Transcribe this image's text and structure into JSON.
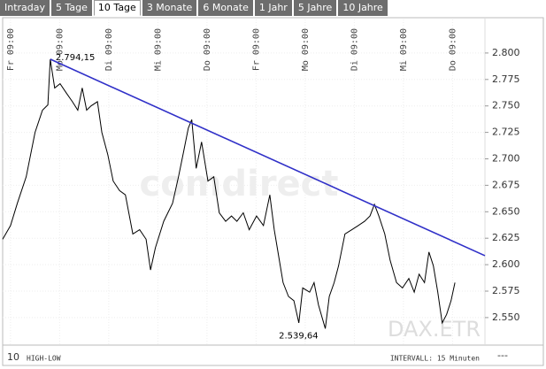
{
  "tabs": [
    "Intraday",
    "5 Tage",
    "10 Tage",
    "3 Monate",
    "6 Monate",
    "1 Jahr",
    "5 Jahre",
    "10 Jahre"
  ],
  "selected_tab_index": 2,
  "chart_data": {
    "type": "line",
    "x": [
      -0.16,
      0,
      0.14,
      0.32,
      0.5,
      0.65,
      0.76,
      0.81,
      0.9,
      1.01,
      1.14,
      1.26,
      1.37,
      1.46,
      1.55,
      1.64,
      1.77,
      1.86,
      1.98,
      2.09,
      2.22,
      2.34,
      2.49,
      2.63,
      2.76,
      2.85,
      2.95,
      3.12,
      3.3,
      3.42,
      3.53,
      3.62,
      3.69,
      3.78,
      3.89,
      4.02,
      4.14,
      4.25,
      4.38,
      4.5,
      4.61,
      4.74,
      4.86,
      5.01,
      5.15,
      5.28,
      5.37,
      5.46,
      5.55,
      5.66,
      5.77,
      5.87,
      5.95,
      6.09,
      6.18,
      6.27,
      6.41,
      6.49,
      6.59,
      6.68,
      6.81,
      6.95,
      7.08,
      7.21,
      7.32,
      7.41,
      7.5,
      7.62,
      7.73,
      7.86,
      7.98,
      8.11,
      8.22,
      8.32,
      8.43,
      8.52,
      8.61,
      8.7,
      8.79,
      8.88,
      8.97,
      9.05
    ],
    "series": [
      {
        "color": "#000000",
        "values": [
          2624,
          2637,
          2658,
          2683,
          2725,
          2746,
          2751,
          2794.15,
          2767,
          2771,
          2762,
          2754,
          2746,
          2767,
          2746,
          2750,
          2754,
          2725,
          2704,
          2679,
          2670,
          2666,
          2629,
          2633,
          2624,
          2595,
          2616,
          2641,
          2658,
          2683,
          2708,
          2729,
          2737,
          2691,
          2716,
          2679,
          2683,
          2649,
          2641,
          2646,
          2641,
          2649,
          2633,
          2646,
          2637,
          2666,
          2633,
          2608,
          2583,
          2570,
          2566,
          2545,
          2578,
          2574,
          2583,
          2562,
          2539.64,
          2570,
          2583,
          2599,
          2629,
          2633,
          2637,
          2641,
          2646,
          2657,
          2646,
          2629,
          2604,
          2583,
          2578,
          2587,
          2574,
          2591,
          2583,
          2612,
          2599,
          2574,
          2545,
          2553,
          2566,
          2583
        ]
      }
    ],
    "high_label": "2.794,15",
    "low_label": "2.539,64",
    "trendline": {
      "x": [
        0.81,
        9.66
      ],
      "values": [
        2794.15,
        2608.5
      ],
      "color": "#3030c8"
    },
    "xlim": [
      -0.16,
      9.66
    ],
    "xticks": [
      {
        "value": 0,
        "label": "Fr 09:00"
      },
      {
        "value": 1,
        "label": "Mo 09:00"
      },
      {
        "value": 2,
        "label": "Di 09:00"
      },
      {
        "value": 3,
        "label": "Mi 09:00"
      },
      {
        "value": 4,
        "label": "Do 09:00"
      },
      {
        "value": 5,
        "label": "Fr 09:00"
      },
      {
        "value": 6,
        "label": "Mo 09:00"
      },
      {
        "value": 7,
        "label": "Di 09:00"
      },
      {
        "value": 8,
        "label": "Mi 09:00"
      },
      {
        "value": 9,
        "label": "Do 09:00"
      }
    ],
    "ylim": [
      2524,
      2825
    ],
    "yticks": [
      {
        "value": 2550,
        "label": "2.550"
      },
      {
        "value": 2575,
        "label": "2.575"
      },
      {
        "value": 2600,
        "label": "2.600"
      },
      {
        "value": 2625,
        "label": "2.625"
      },
      {
        "value": 2650,
        "label": "2.650"
      },
      {
        "value": 2675,
        "label": "2.675"
      },
      {
        "value": 2700,
        "label": "2.700"
      },
      {
        "value": 2725,
        "label": "2.725"
      },
      {
        "value": 2750,
        "label": "2.750"
      },
      {
        "value": 2775,
        "label": "2.775"
      },
      {
        "value": 2800,
        "label": "2.800"
      }
    ],
    "grid": true,
    "watermark": "comdirect",
    "symbol": "DAX.ETR",
    "footer_count": "10",
    "footer_mode": "HIGH-LOW",
    "footer_interval": "INTERVALL: 15 Minuten",
    "footer_right": "---"
  }
}
